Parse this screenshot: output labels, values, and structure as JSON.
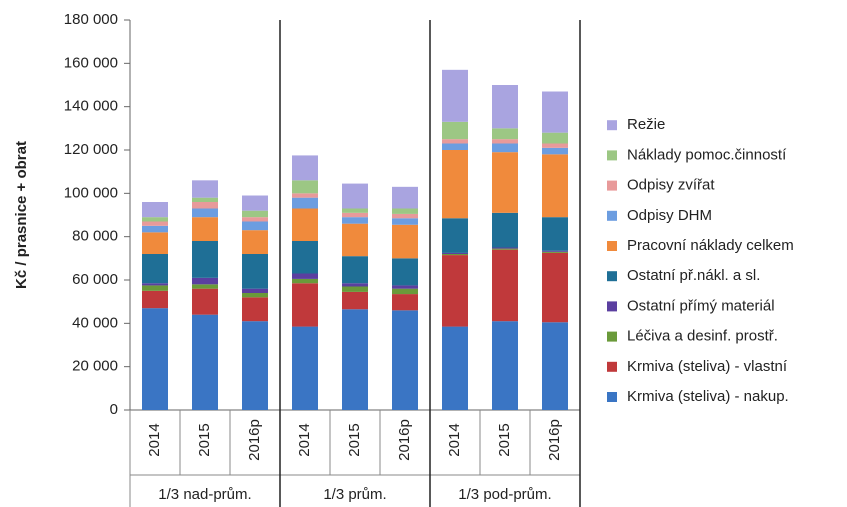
{
  "chart_data": {
    "type": "stacked_bar",
    "y_label": "Kč / prasnice + obrat",
    "categories": [
      "2014",
      "2015",
      "2016p",
      "2014",
      "2015",
      "2016p",
      "2014",
      "2015",
      "2016p"
    ],
    "groups": [
      {
        "label": "1/3 nad-prům.",
        "size": 3
      },
      {
        "label": "1/3 prům.",
        "size": 3
      },
      {
        "label": "1/3 pod-prům.",
        "size": 3
      }
    ],
    "ylim": [
      0,
      180000
    ],
    "yticks": [
      0,
      {
        "value": 20000,
        "label": "20 000"
      },
      {
        "value": 40000,
        "label": "40 000"
      },
      {
        "value": 60000,
        "label": "60 000"
      },
      {
        "value": 80000,
        "label": "80 000"
      },
      {
        "value": 100000,
        "label": "100 000"
      },
      {
        "value": 120000,
        "label": "120 000"
      },
      {
        "value": 140000,
        "label": "140 000"
      },
      {
        "value": 160000,
        "label": "160 000"
      },
      {
        "value": 180000,
        "label": "180 000"
      }
    ],
    "grid": false,
    "legend": "right",
    "series": [
      {
        "name": "Krmiva (steliva) - nakup.",
        "color": "#3a75c4",
        "values": [
          47000,
          44000,
          41000,
          38500,
          46500,
          46000,
          38500,
          41000,
          40500
        ]
      },
      {
        "name": "Krmiva (steliva) - vlastní",
        "color": "#c0393b",
        "values": [
          8000,
          12000,
          11000,
          20000,
          8000,
          7500,
          33000,
          33000,
          32000
        ]
      },
      {
        "name": "Léčiva a desinf. prostř.",
        "color": "#6a9a3a",
        "values": [
          2500,
          2000,
          2000,
          2000,
          2500,
          2500,
          500,
          500,
          500
        ]
      },
      {
        "name": "Ostatní přímý materiál",
        "color": "#5b3fa0",
        "values": [
          1000,
          3000,
          2000,
          2500,
          1500,
          1500,
          500,
          500,
          500
        ]
      },
      {
        "name": "Ostatní př.nákl. a sl.",
        "color": "#1f6f96",
        "values": [
          13500,
          17000,
          16000,
          15000,
          12500,
          12500,
          16000,
          16000,
          15500
        ]
      },
      {
        "name": "Pracovní náklady celkem",
        "color": "#f08a3c",
        "values": [
          10000,
          11000,
          11000,
          15000,
          15000,
          15500,
          31500,
          28000,
          29000
        ]
      },
      {
        "name": "Odpisy DHM",
        "color": "#6c9de0",
        "values": [
          3000,
          4000,
          4000,
          5000,
          3000,
          3000,
          3000,
          4000,
          3000
        ]
      },
      {
        "name": "Odpisy zvířat",
        "color": "#e89a9a",
        "values": [
          2000,
          3000,
          2000,
          2000,
          2000,
          2000,
          2000,
          2000,
          2000
        ]
      },
      {
        "name": "Náklady pomoc.činností",
        "color": "#9cc784",
        "values": [
          2000,
          2000,
          3000,
          6000,
          2000,
          2500,
          8000,
          5000,
          5000
        ]
      },
      {
        "name": "Režie",
        "color": "#a9a4e0",
        "values": [
          7000,
          8000,
          7000,
          11500,
          11500,
          10000,
          24000,
          20000,
          19000
        ]
      }
    ]
  }
}
